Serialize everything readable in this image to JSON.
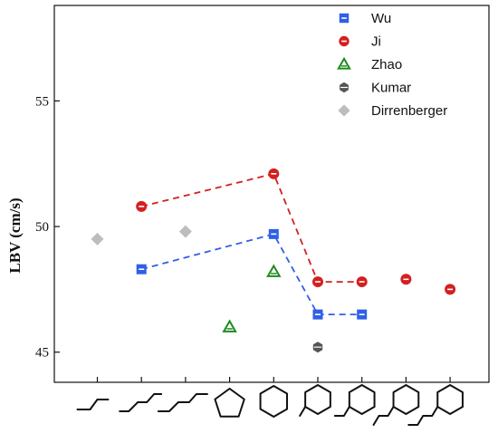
{
  "chart_data": {
    "type": "scatter",
    "ylabel": "LBV (cm/s)",
    "ylim": [
      43.8,
      58.8
    ],
    "yticks": [
      45,
      50,
      55
    ],
    "yticklabels": [
      "45",
      "50",
      "55"
    ],
    "x_categories": [
      "n-butane",
      "n-pentane",
      "n-hexane",
      "cyclopentane",
      "cyclohexane",
      "methylcyclohexane",
      "ethylcyclohexane",
      "n-propylcyclohexane",
      "n-butylcyclohexane"
    ],
    "x_category_icons": [
      "chain-4-icon",
      "chain-5-icon",
      "chain-6-icon",
      "cyclopentane-icon",
      "cyclohexane-icon",
      "methylcyclohexane-icon",
      "ethylcyclohexane-icon",
      "propylcyclohexane-icon",
      "butylcyclohexane-icon"
    ],
    "legend_position": "top-right",
    "series": [
      {
        "name": "Wu",
        "marker": "square",
        "color": "#2f5fe6",
        "dashed_line": true,
        "points": [
          {
            "x": 2,
            "y": 48.3
          },
          {
            "x": 5,
            "y": 49.7
          },
          {
            "x": 6,
            "y": 46.5
          },
          {
            "x": 7,
            "y": 46.5
          }
        ]
      },
      {
        "name": "Ji",
        "marker": "circle",
        "color": "#d42020",
        "dashed_line": true,
        "points": [
          {
            "x": 2,
            "y": 50.8
          },
          {
            "x": 5,
            "y": 52.1
          },
          {
            "x": 6,
            "y": 47.8
          },
          {
            "x": 7,
            "y": 47.8
          },
          {
            "x": 8,
            "y": 47.9
          },
          {
            "x": 9,
            "y": 47.5
          }
        ]
      },
      {
        "name": "Zhao",
        "marker": "triangle",
        "color": "#1e8c1e",
        "dashed_line": false,
        "points": [
          {
            "x": 4,
            "y": 46.0
          },
          {
            "x": 5,
            "y": 48.2
          }
        ]
      },
      {
        "name": "Kumar",
        "marker": "hexagon",
        "color": "#555555",
        "dashed_line": false,
        "points": [
          {
            "x": 6,
            "y": 45.2
          }
        ]
      },
      {
        "name": "Dirrenberger",
        "marker": "diamond",
        "color": "#bdbdbd",
        "dashed_line": false,
        "points": [
          {
            "x": 1,
            "y": 49.5
          },
          {
            "x": 3,
            "y": 49.8
          }
        ]
      }
    ],
    "grid": false
  }
}
